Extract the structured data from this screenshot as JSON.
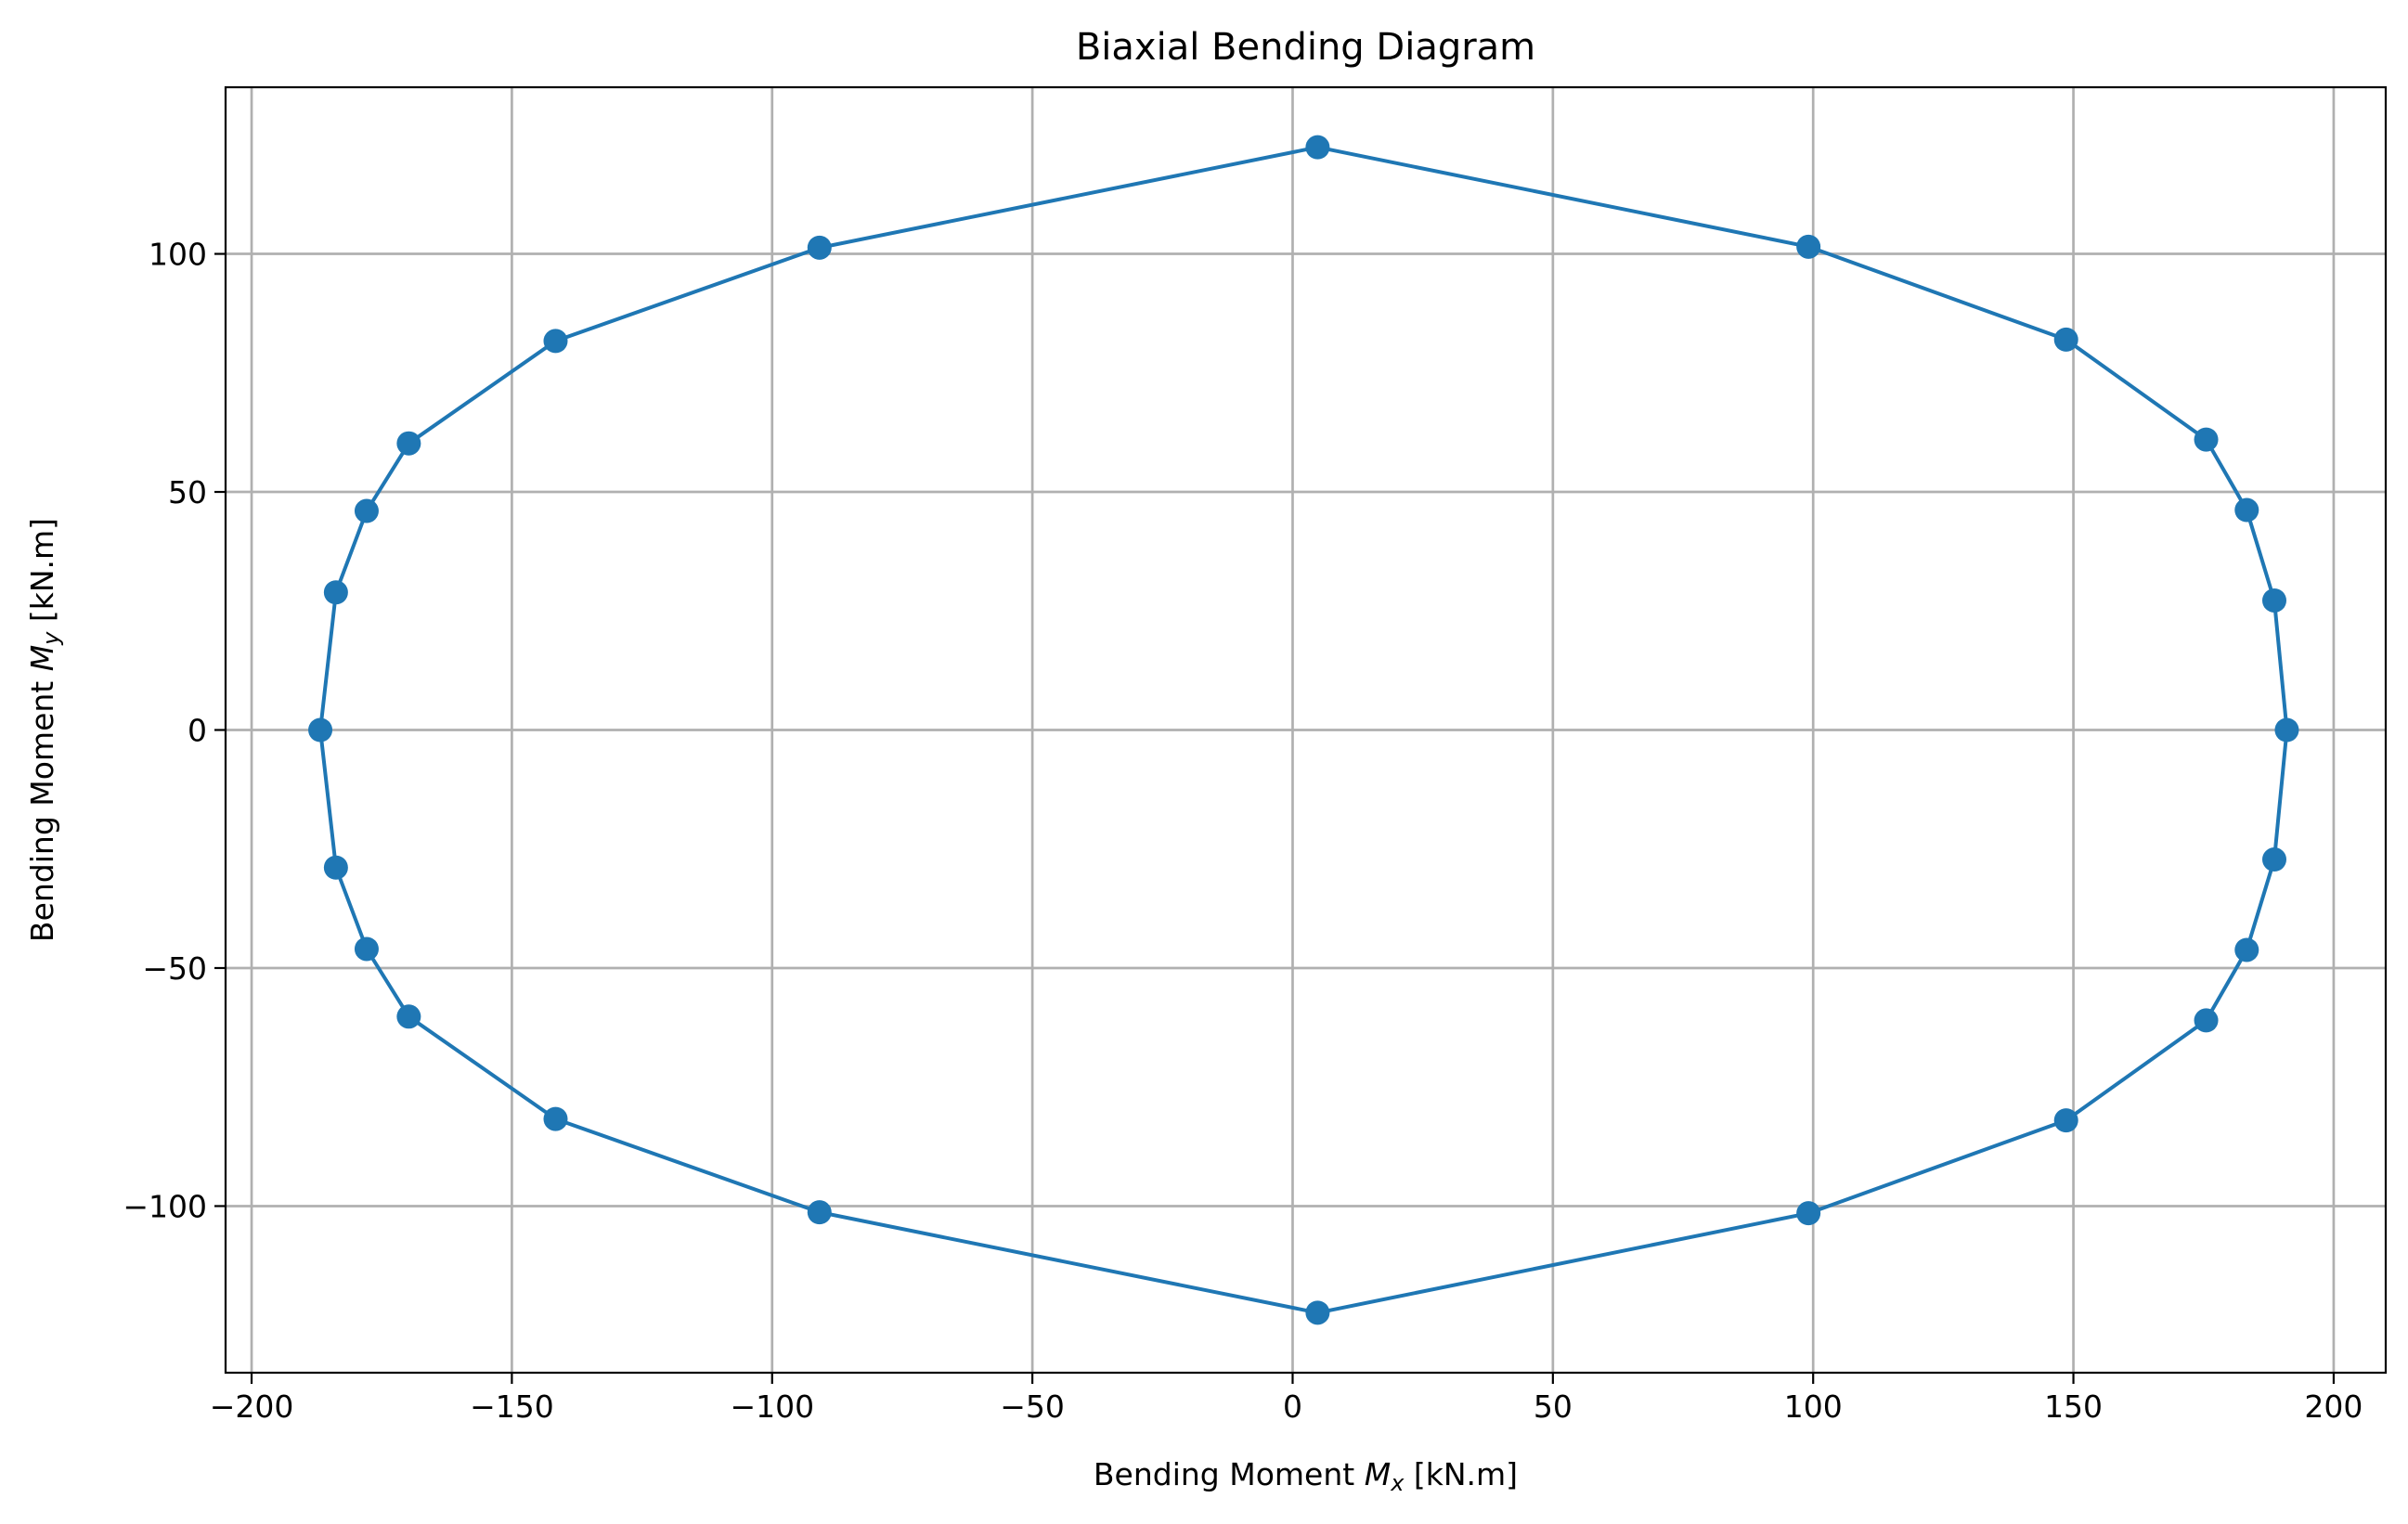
{
  "chart_data": {
    "type": "line",
    "title": "Biaxial Bending Diagram",
    "xlabel": {
      "prefix": "Bending Moment ",
      "symbol": "M",
      "subscript": "x",
      "suffix": " [kN.m]"
    },
    "ylabel": {
      "prefix": "Bending Moment ",
      "symbol": "M",
      "subscript": "y",
      "suffix": " [kN.m]"
    },
    "xlim": [
      -205,
      210
    ],
    "ylim": [
      -135,
      135
    ],
    "xticks": [
      -200,
      -150,
      -100,
      -50,
      0,
      50,
      100,
      150,
      200
    ],
    "xtick_labels": [
      "−200",
      "−150",
      "−100",
      "−50",
      "0",
      "50",
      "100",
      "150",
      "200"
    ],
    "yticks": [
      -100,
      -50,
      0,
      50,
      100
    ],
    "ytick_labels": [
      "−100",
      "−50",
      "0",
      "50",
      "100"
    ],
    "grid": true,
    "series": [
      {
        "color": "#1f77b4",
        "marker": "circle",
        "closed": true,
        "x": [
          191,
          188.6,
          183.3,
          175.5,
          148.6,
          99.1,
          4.8,
          -90.9,
          -141.6,
          -169.8,
          -177.9,
          -183.8,
          -186.8,
          -183.8,
          -177.9,
          -169.8,
          -141.6,
          -90.9,
          4.8,
          99.1,
          148.6,
          175.5,
          183.3,
          188.6,
          191
        ],
        "y": [
          0,
          27.2,
          46.2,
          61,
          82,
          101.5,
          122.4,
          101.3,
          81.7,
          60.2,
          46,
          28.9,
          0,
          -28.9,
          -46,
          -60.2,
          -81.7,
          -101.3,
          -122.4,
          -101.5,
          -82,
          -61,
          -46.2,
          -27.2,
          0
        ]
      }
    ]
  }
}
